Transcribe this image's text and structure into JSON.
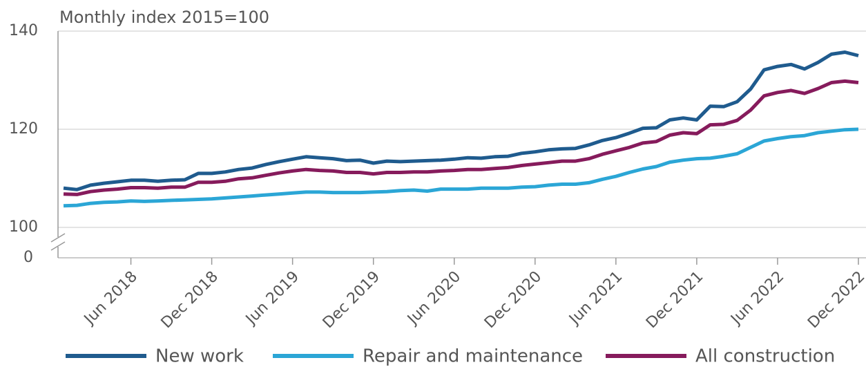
{
  "chart_data": {
    "type": "line",
    "title": "Monthly index 2015=100",
    "categories": [
      null,
      null,
      null,
      null,
      null,
      "Jun 2018",
      null,
      null,
      null,
      null,
      null,
      "Dec 2018",
      null,
      null,
      null,
      null,
      null,
      "Jun 2019",
      null,
      null,
      null,
      null,
      null,
      "Dec 2019",
      null,
      null,
      null,
      null,
      null,
      "Jun 2020",
      null,
      null,
      null,
      null,
      null,
      "Dec 2020",
      null,
      null,
      null,
      null,
      null,
      "Jun 2021",
      null,
      null,
      null,
      null,
      null,
      "Dec 2021",
      null,
      null,
      null,
      null,
      null,
      "Jun 2022",
      null,
      null,
      null,
      null,
      null,
      "Dec 2022"
    ],
    "series": [
      {
        "name": "New work",
        "color": "#1f5b8e",
        "values": [
          108.0,
          107.7,
          108.6,
          109.0,
          109.3,
          109.6,
          109.6,
          109.4,
          109.6,
          109.7,
          111.0,
          111.0,
          111.3,
          111.8,
          112.1,
          112.8,
          113.4,
          113.9,
          114.4,
          114.2,
          114.0,
          113.6,
          113.7,
          113.1,
          113.5,
          113.4,
          113.5,
          113.6,
          113.7,
          113.9,
          114.2,
          114.1,
          114.4,
          114.5,
          115.1,
          115.4,
          115.8,
          116.0,
          116.1,
          116.8,
          117.7,
          118.3,
          119.2,
          120.2,
          120.3,
          121.9,
          122.3,
          121.9,
          124.7,
          124.6,
          125.6,
          128.2,
          132.1,
          132.8,
          133.2,
          132.3,
          133.6,
          135.3,
          135.7,
          135.0
        ]
      },
      {
        "name": "Repair and maintenance",
        "color": "#2ba6d6",
        "values": [
          104.4,
          104.5,
          104.9,
          105.1,
          105.2,
          105.4,
          105.3,
          105.4,
          105.5,
          105.6,
          105.7,
          105.8,
          106.0,
          106.2,
          106.4,
          106.6,
          106.8,
          107.0,
          107.2,
          107.2,
          107.1,
          107.1,
          107.1,
          107.2,
          107.3,
          107.5,
          107.6,
          107.4,
          107.8,
          107.8,
          107.8,
          108.0,
          108.0,
          108.0,
          108.2,
          108.3,
          108.6,
          108.8,
          108.8,
          109.1,
          109.8,
          110.4,
          111.2,
          111.9,
          112.4,
          113.3,
          113.7,
          114.0,
          114.1,
          114.5,
          115.0,
          116.3,
          117.6,
          118.1,
          118.5,
          118.7,
          119.3,
          119.6,
          119.9,
          120.0
        ]
      },
      {
        "name": "All construction",
        "color": "#861b5c",
        "values": [
          106.8,
          106.7,
          107.3,
          107.6,
          107.8,
          108.1,
          108.1,
          108.0,
          108.2,
          108.2,
          109.2,
          109.2,
          109.4,
          109.9,
          110.1,
          110.6,
          111.1,
          111.5,
          111.8,
          111.6,
          111.5,
          111.2,
          111.2,
          110.9,
          111.2,
          111.2,
          111.3,
          111.3,
          111.5,
          111.6,
          111.8,
          111.8,
          112.0,
          112.2,
          112.6,
          112.9,
          113.2,
          113.5,
          113.5,
          114.0,
          114.9,
          115.6,
          116.3,
          117.2,
          117.5,
          118.8,
          119.3,
          119.1,
          120.9,
          121.0,
          121.8,
          123.9,
          126.8,
          127.5,
          127.9,
          127.3,
          128.3,
          129.5,
          129.8,
          129.5
        ]
      }
    ],
    "ylim": [
      100,
      140
    ],
    "yticks": [
      100,
      120,
      140
    ],
    "y_break_tick": 0,
    "grid": true,
    "legend": "bottom"
  }
}
